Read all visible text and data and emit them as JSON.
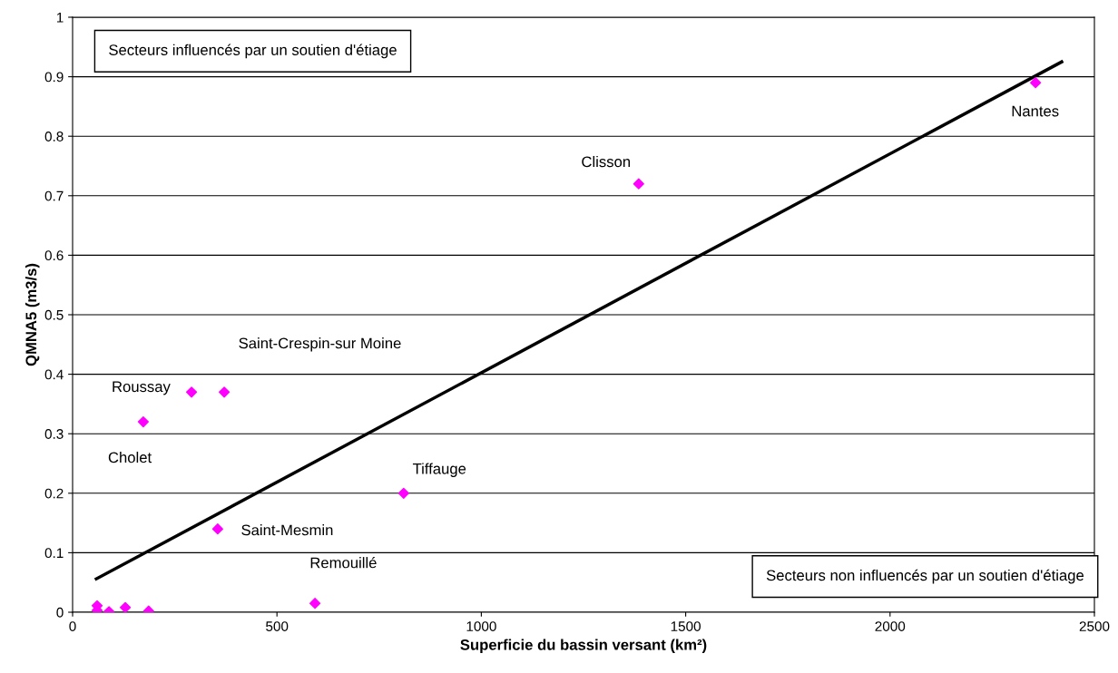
{
  "chart_data": {
    "type": "scatter",
    "xlabel": "Superficie du bassin versant (km²)",
    "ylabel": "QMNA5 (m3/s)",
    "xlim": [
      0,
      2500
    ],
    "xticks": [
      0,
      500,
      1000,
      1500,
      2000,
      2500
    ],
    "ylim": [
      0,
      1
    ],
    "yticks": [
      0,
      0.1,
      0.2,
      0.3,
      0.4,
      0.5,
      0.6,
      0.7,
      0.8,
      0.9,
      1
    ],
    "grid": "y",
    "marker": "diamond",
    "series": [
      {
        "color": "#ff00ff",
        "x": [
          2356,
          1385,
          291,
          371,
          173,
          810,
          355,
          593,
          60,
          60,
          89,
          129,
          186
        ],
        "values": [
          0.89,
          0.72,
          0.37,
          0.37,
          0.32,
          0.2,
          0.14,
          0.015,
          0.011,
          0.003,
          0.001,
          0.008,
          0.002
        ]
      },
      {
        "type": "line",
        "color": "#000000",
        "marker": "none",
        "line_style": "solid",
        "x": [
          58,
          2420
        ],
        "values": [
          0.056,
          0.925
        ]
      }
    ],
    "annotations": [
      "Nantes",
      "Clisson",
      "Saint-Crespin-sur Moine",
      "Roussay",
      "Cholet",
      "Tiffauge",
      "Saint-Mesmin",
      "Remouillé",
      "Secteurs influencés par un soutien d'étiage",
      "Secteurs non influencés par un soutien d'étiage"
    ]
  }
}
